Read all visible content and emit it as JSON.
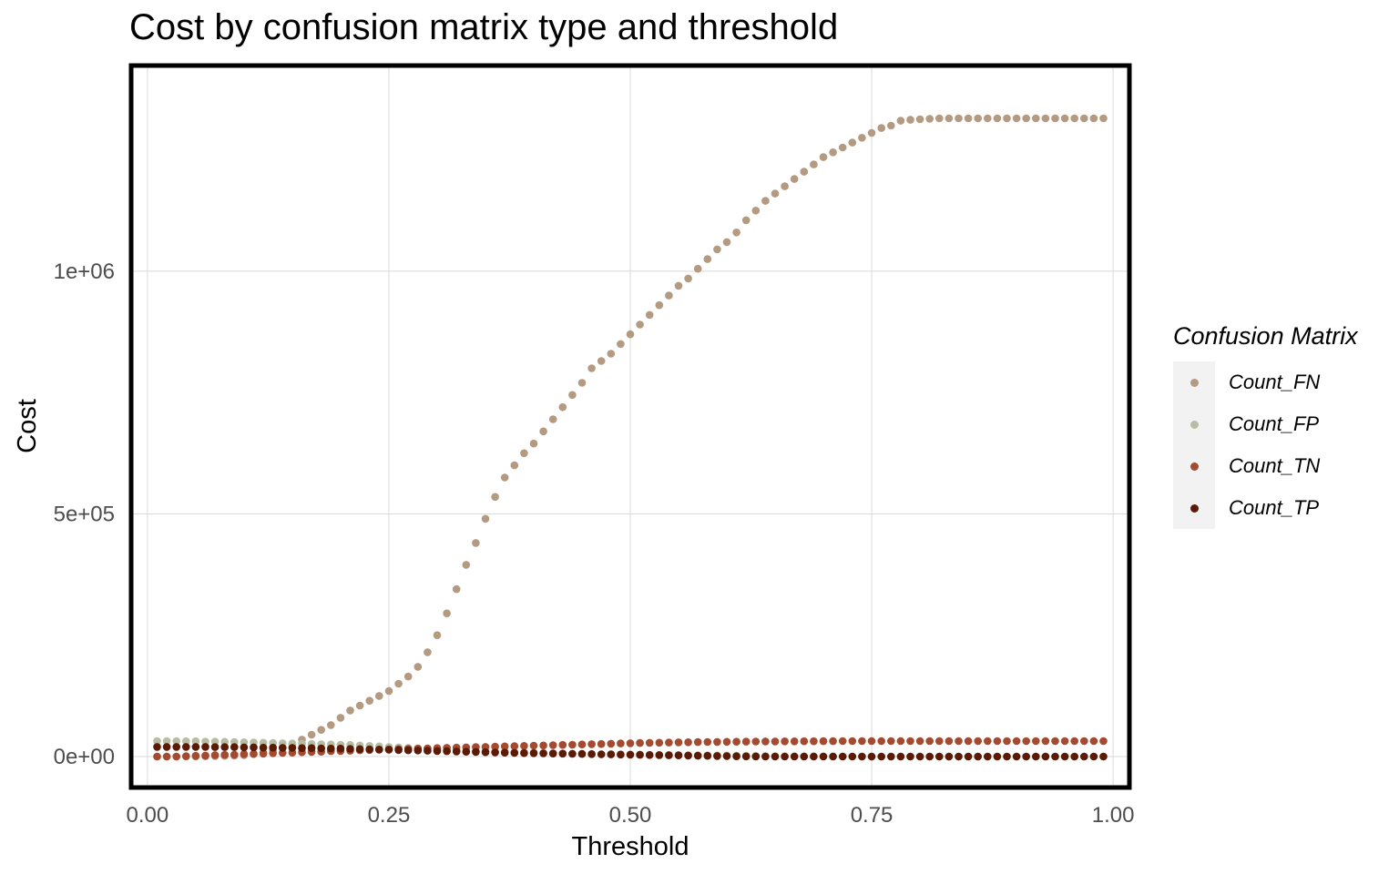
{
  "chart_data": {
    "type": "scatter",
    "title": "Cost by confusion matrix type and threshold",
    "xlabel": "Threshold",
    "ylabel": "Cost",
    "xlim": [
      -0.015,
      1.015
    ],
    "ylim": [
      -60000,
      1420000
    ],
    "x_ticks": [
      0,
      0.25,
      0.5,
      0.75,
      1
    ],
    "x_tick_labels": [
      "0.00",
      "0.25",
      "0.50",
      "0.75",
      "1.00"
    ],
    "y_ticks": [
      0,
      500000,
      1000000
    ],
    "y_tick_labels": [
      "0e+00",
      "5e+05",
      "1e+06"
    ],
    "grid": true,
    "legend": {
      "title": "Confusion Matrix",
      "placement": "right",
      "entries": [
        "Count_FN",
        "Count_FP",
        "Count_TN",
        "Count_TP"
      ]
    },
    "x": [
      0.01,
      0.02,
      0.03,
      0.04,
      0.05,
      0.06,
      0.07,
      0.08,
      0.09,
      0.1,
      0.11,
      0.12,
      0.13,
      0.14,
      0.15,
      0.16,
      0.17,
      0.18,
      0.19,
      0.2,
      0.21,
      0.22,
      0.23,
      0.24,
      0.25,
      0.26,
      0.27,
      0.28,
      0.29,
      0.3,
      0.31,
      0.32,
      0.33,
      0.34,
      0.35,
      0.36,
      0.37,
      0.38,
      0.39,
      0.4,
      0.41,
      0.42,
      0.43,
      0.44,
      0.45,
      0.46,
      0.47,
      0.48,
      0.49,
      0.5,
      0.51,
      0.52,
      0.53,
      0.54,
      0.55,
      0.56,
      0.57,
      0.58,
      0.59,
      0.6,
      0.61,
      0.62,
      0.63,
      0.64,
      0.65,
      0.66,
      0.67,
      0.68,
      0.69,
      0.7,
      0.71,
      0.72,
      0.73,
      0.74,
      0.75,
      0.76,
      0.77,
      0.78,
      0.79,
      0.8,
      0.81,
      0.82,
      0.83,
      0.84,
      0.85,
      0.86,
      0.87,
      0.88,
      0.89,
      0.9,
      0.91,
      0.92,
      0.93,
      0.94,
      0.95,
      0.96,
      0.97,
      0.98,
      0.99
    ],
    "series": [
      {
        "name": "Count_FN",
        "color": "#b39a80",
        "values": [
          0,
          0,
          0,
          0,
          0,
          500,
          1000,
          1500,
          2000,
          3000,
          5000,
          8000,
          12000,
          18000,
          25000,
          35000,
          45000,
          55000,
          65000,
          80000,
          95000,
          105000,
          115000,
          125000,
          135000,
          150000,
          165000,
          185000,
          215000,
          250000,
          295000,
          345000,
          395000,
          440000,
          490000,
          535000,
          575000,
          600000,
          625000,
          645000,
          670000,
          695000,
          720000,
          745000,
          770000,
          800000,
          815000,
          830000,
          850000,
          870000,
          890000,
          910000,
          930000,
          950000,
          970000,
          985000,
          1005000,
          1025000,
          1045000,
          1060000,
          1080000,
          1105000,
          1125000,
          1145000,
          1160000,
          1175000,
          1190000,
          1205000,
          1220000,
          1235000,
          1245000,
          1255000,
          1265000,
          1275000,
          1285000,
          1295000,
          1300000,
          1310000,
          1312000,
          1313000,
          1314000,
          1315000,
          1315000,
          1315000,
          1315000,
          1315000,
          1315000,
          1315000,
          1315000,
          1315000,
          1315000,
          1315000,
          1315000,
          1315000,
          1315000,
          1315000,
          1315000,
          1315000,
          1315000
        ]
      },
      {
        "name": "Count_FP",
        "color": "#b7bda2",
        "values": [
          32000,
          32000,
          32000,
          31500,
          31500,
          31000,
          31000,
          30500,
          30000,
          29500,
          29000,
          28500,
          28000,
          27500,
          27000,
          26500,
          26000,
          25500,
          25000,
          24500,
          24000,
          23000,
          22000,
          21000,
          20000,
          19000,
          18000,
          17000,
          16000,
          15000,
          14000,
          13000,
          12000,
          11000,
          10500,
          10000,
          9500,
          9000,
          8500,
          8000,
          7500,
          7000,
          6500,
          6000,
          5500,
          5000,
          4800,
          4600,
          4400,
          4200,
          4000,
          3800,
          3600,
          3400,
          3200,
          3000,
          2800,
          2600,
          2400,
          2200,
          2000,
          1800,
          1600,
          1400,
          1200,
          1000,
          900,
          800,
          700,
          600,
          500,
          400,
          300,
          200,
          100,
          0,
          0,
          0,
          0,
          0,
          0,
          0,
          0,
          0,
          0,
          0,
          0,
          0,
          0,
          0,
          0,
          0,
          0,
          0,
          0,
          0,
          0,
          0,
          0
        ]
      },
      {
        "name": "Count_TN",
        "color": "#a34a30",
        "values": [
          0,
          0,
          0,
          1000,
          1500,
          2000,
          3000,
          3500,
          4000,
          5000,
          5500,
          6000,
          7000,
          7500,
          8000,
          9000,
          9500,
          10000,
          11000,
          11500,
          12000,
          13000,
          13500,
          14000,
          15000,
          15500,
          16000,
          16500,
          17000,
          17500,
          18000,
          18500,
          19000,
          19500,
          20000,
          20500,
          21000,
          21500,
          22000,
          22500,
          23000,
          23500,
          24000,
          24500,
          25000,
          25500,
          26000,
          26500,
          27000,
          27500,
          28000,
          28300,
          28600,
          28900,
          29200,
          29500,
          29800,
          30000,
          30200,
          30400,
          30600,
          30800,
          31000,
          31100,
          31200,
          31300,
          31400,
          31500,
          31600,
          31700,
          31800,
          31900,
          32000,
          32000,
          32000,
          32000,
          32000,
          32000,
          32000,
          32000,
          32000,
          32000,
          32000,
          32000,
          32000,
          32000,
          32000,
          32000,
          32000,
          32000,
          32000,
          32000,
          32000,
          32000,
          32000,
          32000,
          32000,
          32000,
          32000
        ]
      },
      {
        "name": "Count_TP",
        "color": "#5a1a05",
        "values": [
          20000,
          20000,
          20000,
          20000,
          20000,
          20000,
          19500,
          19500,
          19500,
          19000,
          19000,
          18500,
          18500,
          18000,
          18000,
          17500,
          17500,
          17000,
          16500,
          16500,
          16000,
          15500,
          15000,
          14500,
          14000,
          13500,
          13000,
          12500,
          12000,
          11500,
          11000,
          10500,
          10000,
          9500,
          9000,
          8500,
          8000,
          7500,
          7200,
          6900,
          6600,
          6300,
          6000,
          5700,
          5400,
          5100,
          4800,
          4500,
          4200,
          3900,
          3600,
          3300,
          3000,
          2700,
          2400,
          2100,
          1800,
          1500,
          1200,
          900,
          600,
          400,
          200,
          0,
          0,
          0,
          0,
          0,
          0,
          0,
          0,
          0,
          0,
          0,
          0,
          0,
          0,
          0,
          0,
          0,
          0,
          0,
          0,
          0,
          0,
          0,
          0,
          0,
          0,
          0,
          0,
          0,
          0,
          0,
          0,
          0,
          0,
          0,
          0
        ]
      }
    ]
  }
}
